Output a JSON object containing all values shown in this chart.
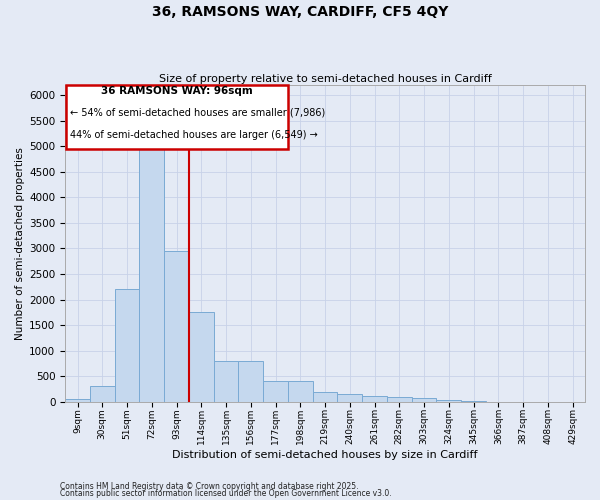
{
  "title": "36, RAMSONS WAY, CARDIFF, CF5 4QY",
  "subtitle": "Size of property relative to semi-detached houses in Cardiff",
  "xlabel": "Distribution of semi-detached houses by size in Cardiff",
  "ylabel": "Number of semi-detached properties",
  "footnote1": "Contains HM Land Registry data © Crown copyright and database right 2025.",
  "footnote2": "Contains public sector information licensed under the Open Government Licence v3.0.",
  "property_label": "36 RAMSONS WAY: 96sqm",
  "smaller_text": "← 54% of semi-detached houses are smaller (7,986)",
  "larger_text": "44% of semi-detached houses are larger (6,549) →",
  "bin_labels": [
    "9sqm",
    "30sqm",
    "51sqm",
    "72sqm",
    "93sqm",
    "114sqm",
    "135sqm",
    "156sqm",
    "177sqm",
    "198sqm",
    "219sqm",
    "240sqm",
    "261sqm",
    "282sqm",
    "303sqm",
    "324sqm",
    "345sqm",
    "366sqm",
    "387sqm",
    "408sqm",
    "429sqm"
  ],
  "bar_values": [
    50,
    300,
    2200,
    4950,
    2950,
    1750,
    800,
    790,
    410,
    400,
    195,
    145,
    105,
    100,
    68,
    28,
    10,
    5,
    3,
    1,
    1
  ],
  "bar_color": "#c5d8ee",
  "bar_edge_color": "#7aaad4",
  "vline_color": "#cc0000",
  "vline_x": 4.5,
  "bg_color": "#e4eaf5",
  "grid_color": "#c8d2e8",
  "annotation_edge_color": "#cc0000",
  "ylim_max": 6200,
  "yticks": [
    0,
    500,
    1000,
    1500,
    2000,
    2500,
    3000,
    3500,
    4000,
    4500,
    5000,
    5500,
    6000
  ]
}
